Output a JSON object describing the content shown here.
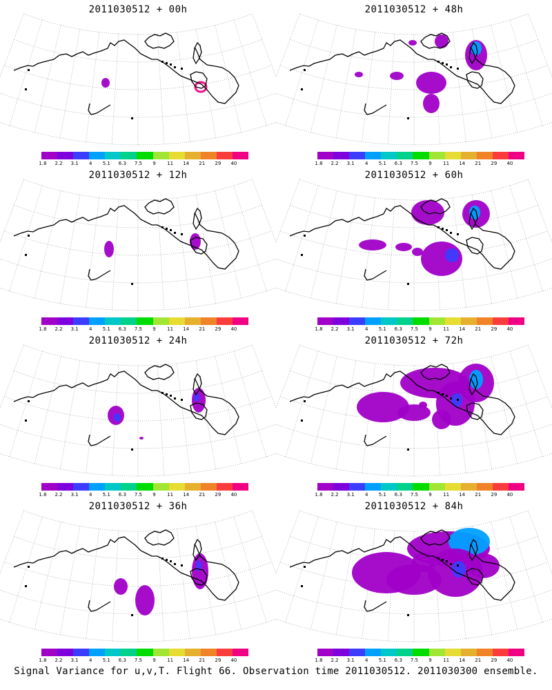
{
  "figure": {
    "footer": "Signal Variance for u,v,T. Flight 66. Observation time 2011030512. 2011030300 ensemble."
  },
  "chart_data": {
    "type": "heatmap",
    "colorbar": {
      "labels": [
        "1.8",
        "2.2",
        "3.1",
        "4",
        "5.1",
        "6.3",
        "7.5",
        "9",
        "11",
        "14",
        "21",
        "29",
        "40"
      ],
      "colors": [
        "#a000c8",
        "#7e00dc",
        "#3c3cff",
        "#00a0ff",
        "#00c8c8",
        "#00d28c",
        "#00dc00",
        "#a0e632",
        "#e6dc32",
        "#e6af2d",
        "#f08228",
        "#fa3c3c",
        "#f00082"
      ]
    },
    "panels": [
      {
        "title": "2011030512 + 00h",
        "lead": "00h"
      },
      {
        "title": "2011030512 + 48h",
        "lead": "48h"
      },
      {
        "title": "2011030512 + 12h",
        "lead": "12h"
      },
      {
        "title": "2011030512 + 60h",
        "lead": "60h"
      },
      {
        "title": "2011030512 + 24h",
        "lead": "24h"
      },
      {
        "title": "2011030512 + 72h",
        "lead": "72h"
      },
      {
        "title": "2011030512 + 36h",
        "lead": "36h"
      },
      {
        "title": "2011030512 + 84h",
        "lead": "84h"
      }
    ]
  }
}
